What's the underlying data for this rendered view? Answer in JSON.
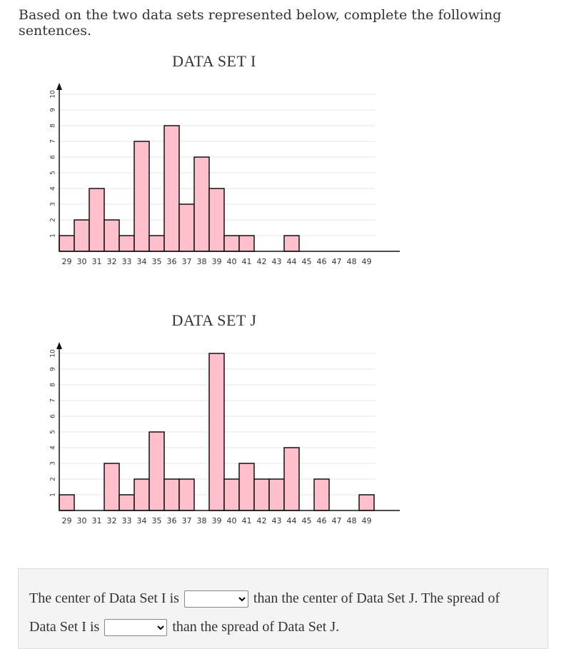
{
  "intro_text": "Based on the two data sets represented below, complete the following sentences.",
  "chart_data": [
    {
      "type": "bar",
      "title": "DATA SET I",
      "categories": [
        "29",
        "30",
        "31",
        "32",
        "33",
        "34",
        "35",
        "36",
        "37",
        "38",
        "39",
        "40",
        "41",
        "42",
        "43",
        "44",
        "45",
        "46",
        "47",
        "48",
        "49"
      ],
      "values": [
        1,
        2,
        4,
        2,
        1,
        7,
        1,
        8,
        3,
        6,
        4,
        1,
        1,
        0,
        0,
        1,
        0,
        0,
        0,
        0,
        0
      ],
      "ylim": [
        0,
        10
      ],
      "yticks": [
        "1",
        "2",
        "3",
        "4",
        "5",
        "6",
        "7",
        "8",
        "9",
        "10"
      ],
      "grid": true,
      "bar_color": "#ffc0cb"
    },
    {
      "type": "bar",
      "title": "DATA SET J",
      "categories": [
        "29",
        "30",
        "31",
        "32",
        "33",
        "34",
        "35",
        "36",
        "37",
        "38",
        "39",
        "40",
        "41",
        "42",
        "43",
        "44",
        "45",
        "46",
        "47",
        "48",
        "49"
      ],
      "values": [
        1,
        0,
        0,
        3,
        1,
        2,
        5,
        2,
        2,
        0,
        10,
        2,
        3,
        2,
        2,
        4,
        0,
        2,
        0,
        0,
        1
      ],
      "ylim": [
        0,
        10
      ],
      "yticks": [
        "1",
        "2",
        "3",
        "4",
        "5",
        "6",
        "7",
        "8",
        "9",
        "10"
      ],
      "grid": true,
      "bar_color": "#ffc0cb"
    }
  ],
  "question": {
    "line1_part1": "The center of Data Set I is",
    "line1_part2": "than the center of Data Set J. The spread of",
    "line2_part1": "Data Set I is",
    "line2_part2": "than the spread of Data Set J.",
    "select1_value": "",
    "select2_value": ""
  }
}
